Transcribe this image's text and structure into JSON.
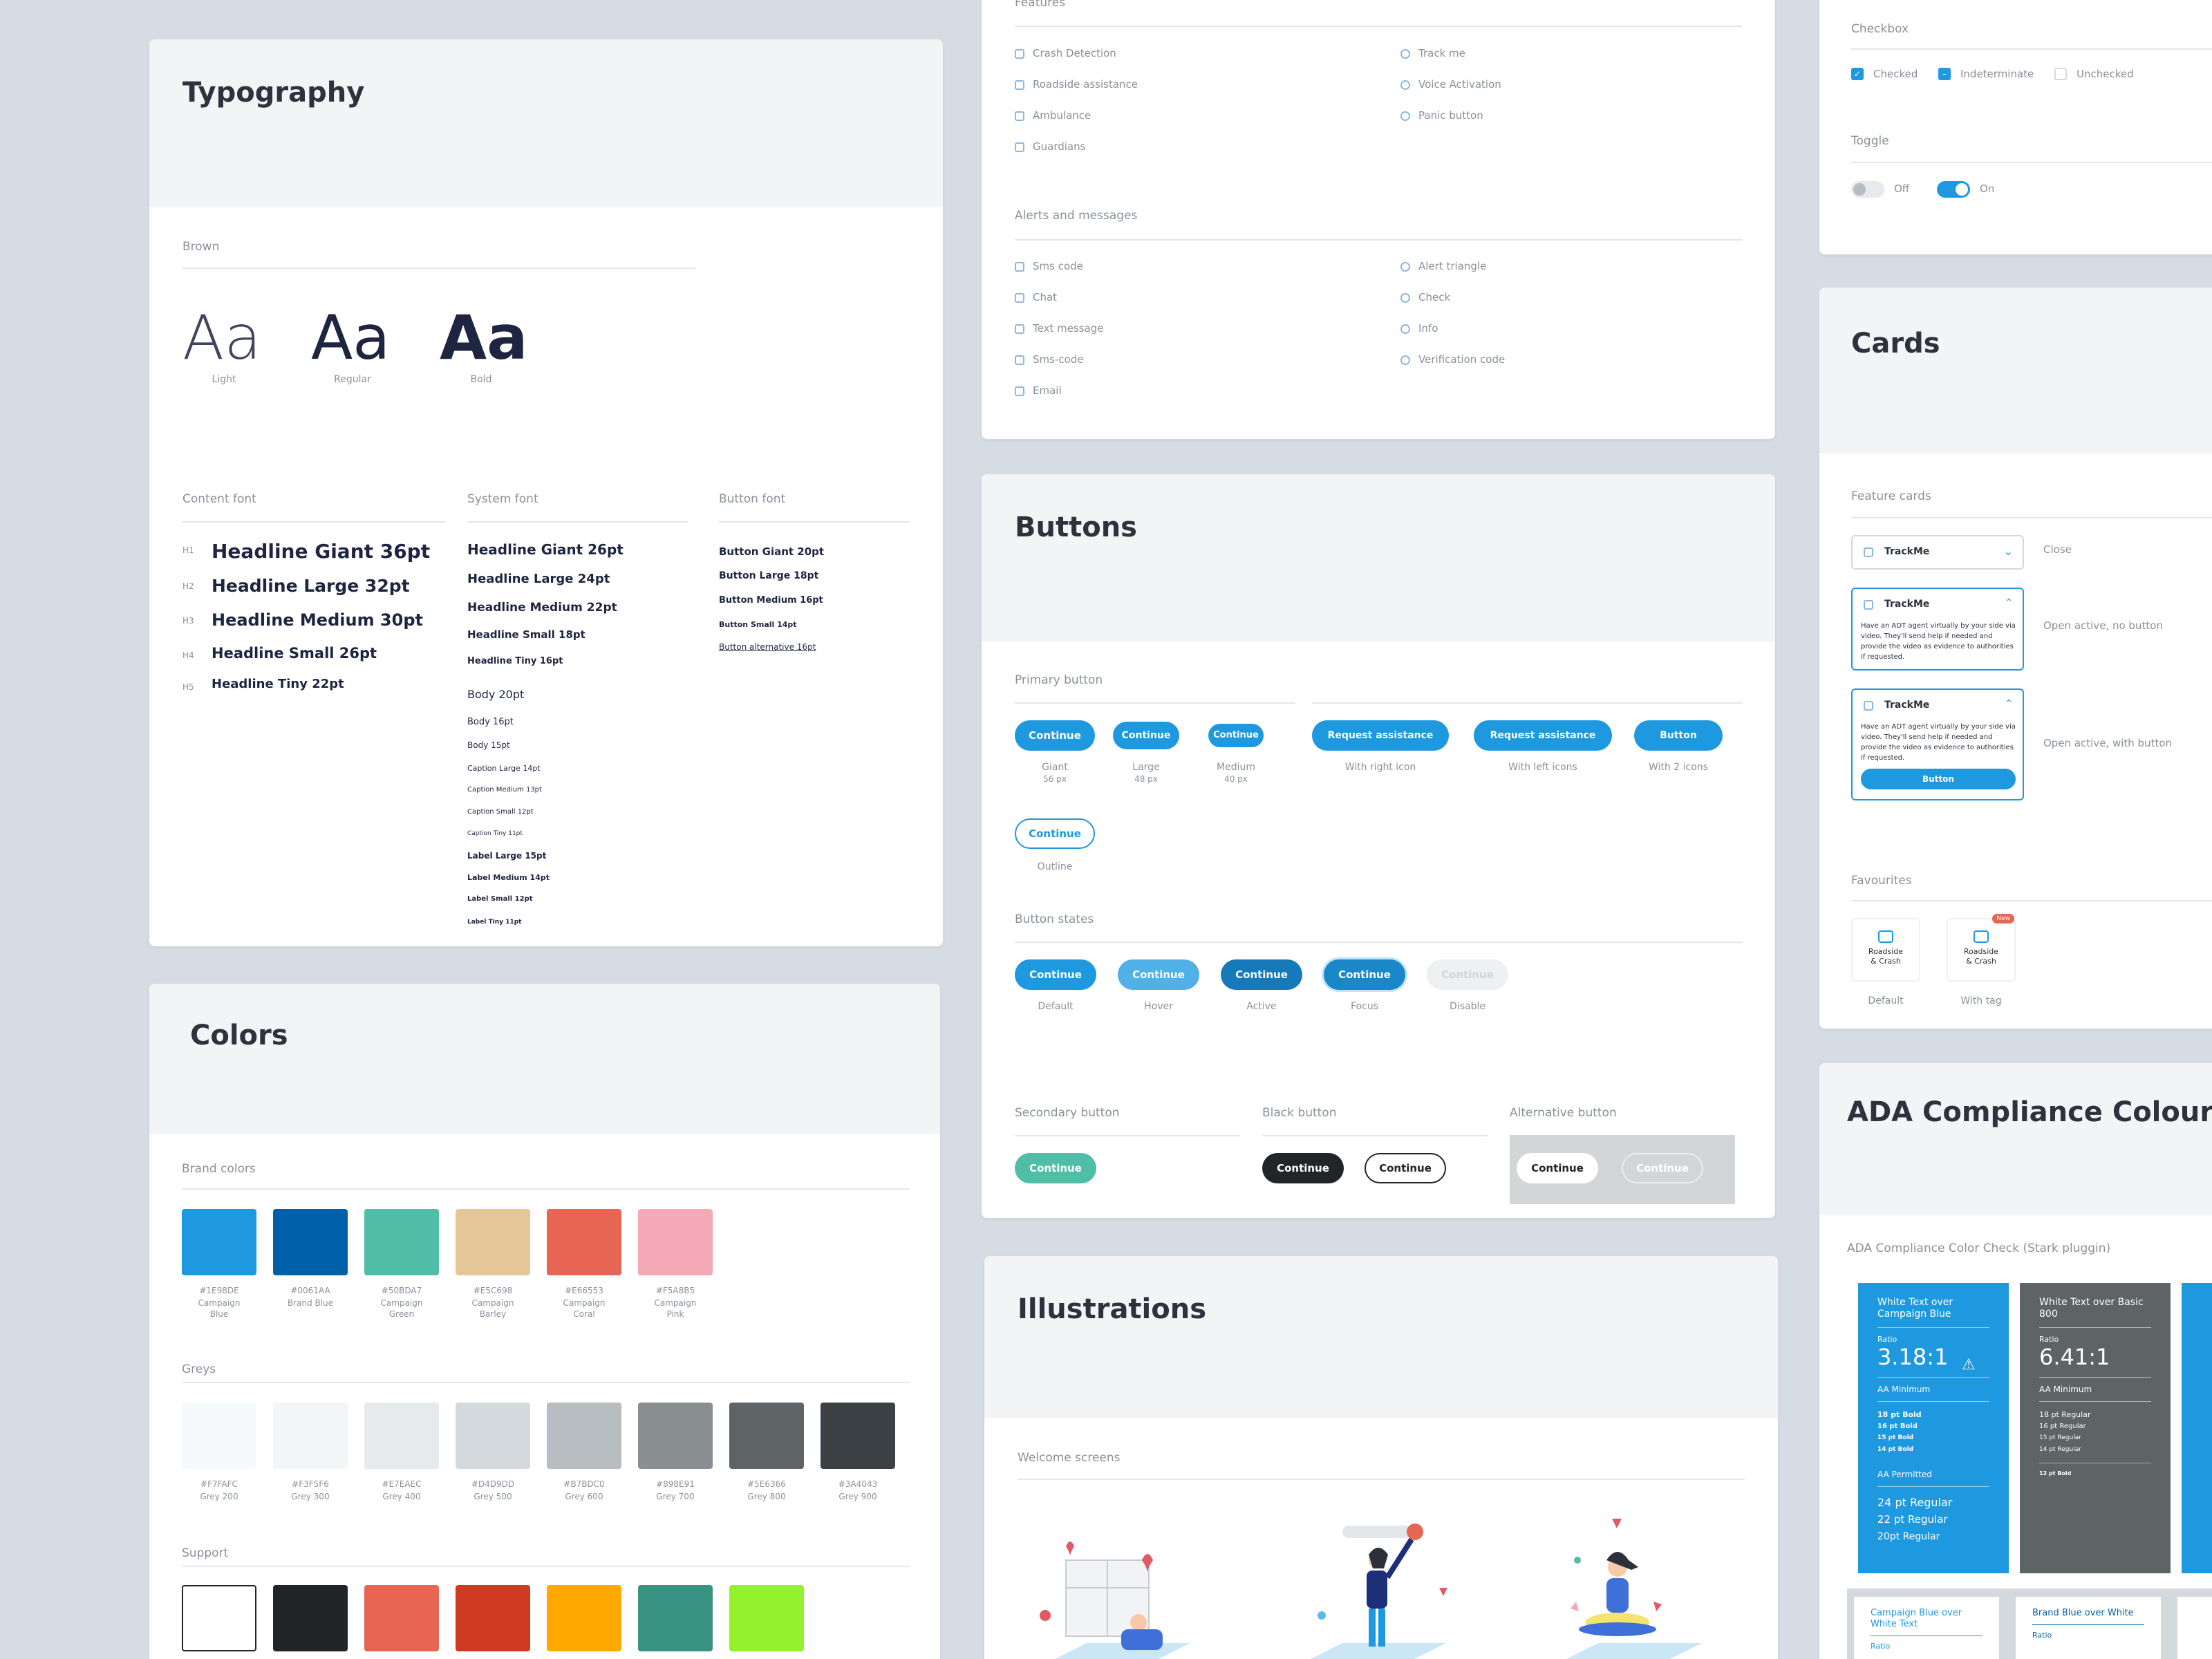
{
  "typography": {
    "title": "Typography",
    "font_section": "Brown",
    "weights": [
      {
        "sample": "Aa",
        "label": "Light"
      },
      {
        "sample": "Aa",
        "label": "Regular"
      },
      {
        "sample": "Aa",
        "label": "Bold"
      }
    ],
    "content_label": "Content font",
    "system_label": "System font",
    "button_label": "Button font",
    "content_font": [
      {
        "tag": "H1",
        "text": "Headline Giant 36pt"
      },
      {
        "tag": "H2",
        "text": "Headline Large 32pt"
      },
      {
        "tag": "H3",
        "text": "Headline Medium 30pt"
      },
      {
        "tag": "H4",
        "text": "Headline Small 26pt"
      },
      {
        "tag": "H5",
        "text": "Headline Tiny 22pt"
      }
    ],
    "system_font": [
      "Headline Giant 26pt",
      "Headline Large 24pt",
      "Headline Medium 22pt",
      "Headline Small 18pt",
      "Headline Tiny 16pt",
      "Body 20pt",
      "Body 16pt",
      "Body 15pt",
      "Caption Large 14pt",
      "Caption Medium 13pt",
      "Caption Small 12pt",
      "Caption Tiny 11pt",
      "Label Large 15pt",
      "Label Medium 14pt",
      "Label Small 12pt",
      "Label Tiny 11pt"
    ],
    "button_font": [
      "Button Giant 20pt",
      "Button Large 18pt",
      "Button Medium 16pt",
      "Button Small 14pt",
      "Button alternative 16pt"
    ]
  },
  "colors": {
    "title": "Colors",
    "brand_label": "Brand colors",
    "brand": [
      {
        "hex": "#1E98DE",
        "name": "Campaign Blue",
        "color": "#1E98DE"
      },
      {
        "hex": "#0061AA",
        "name": "Brand Blue",
        "color": "#0061AA"
      },
      {
        "hex": "#50BDA7",
        "name": "Campaign Green",
        "color": "#50BDA7"
      },
      {
        "hex": "#E5C698",
        "name": "Campaign Barley",
        "color": "#E5C698"
      },
      {
        "hex": "#E66553",
        "name": "Campaign Coral",
        "color": "#E66553"
      },
      {
        "hex": "#F5A8B5",
        "name": "Campaign Pink",
        "color": "#F5A8B5"
      }
    ],
    "greys_label": "Greys",
    "greys": [
      {
        "hex": "#F7FAFC",
        "name": "Grey 200",
        "color": "#F7FAFC"
      },
      {
        "hex": "#F3F5F6",
        "name": "Grey 300",
        "color": "#F3F5F6"
      },
      {
        "hex": "#E7EAEC",
        "name": "Grey 400",
        "color": "#E7EAEC"
      },
      {
        "hex": "#D4D9DD",
        "name": "Grey 500",
        "color": "#D4D9DD"
      },
      {
        "hex": "#B7BDC0",
        "name": "Grey 600",
        "color": "#B7BDC0"
      },
      {
        "hex": "#898E91",
        "name": "Grey 700",
        "color": "#898E91"
      },
      {
        "hex": "#5E6366",
        "name": "Grey 800",
        "color": "#5E6366"
      },
      {
        "hex": "#3A4043",
        "name": "Grey 900",
        "color": "#3A4043"
      }
    ],
    "support_label": "Support",
    "support": [
      "#FFFFFF",
      "#222428",
      "#E66553",
      "#D13A22",
      "#FFA800",
      "#3A9282",
      "#93F22B"
    ]
  },
  "icons": {
    "features_label": "Features",
    "features_left": [
      "Crash Detection",
      "Roadside assistance",
      "Ambulance",
      "Guardians"
    ],
    "features_right": [
      "Track me",
      "Voice Activation",
      "Panic button"
    ],
    "alerts_label": "Alerts and messages",
    "alerts_left": [
      "Sms code",
      "Chat",
      "Text message",
      "Sms-code",
      "Email"
    ],
    "alerts_right": [
      "Alert triangle",
      "Check",
      "Info",
      "Verification code"
    ]
  },
  "buttons": {
    "title": "Buttons",
    "primary_label": "Primary button",
    "sizes": [
      {
        "label": "Continue",
        "name": "Giant",
        "px": "56 px"
      },
      {
        "label": "Continue",
        "name": "Large",
        "px": "48 px"
      },
      {
        "label": "Continue",
        "name": "Medium",
        "px": "40 px"
      }
    ],
    "icon_buttons": [
      {
        "label": "Request assistance",
        "caption": "With right icon"
      },
      {
        "label": "Request assistance",
        "caption": "With left icons"
      },
      {
        "label": "Button",
        "caption": "With 2 icons"
      }
    ],
    "outline": {
      "label": "Continue",
      "caption": "Outline"
    },
    "states_label": "Button states",
    "states": [
      {
        "label": "Continue",
        "caption": "Default",
        "color": "#1E98DE"
      },
      {
        "label": "Continue",
        "caption": "Hover",
        "color": "#4FB1E8"
      },
      {
        "label": "Continue",
        "caption": "Active",
        "color": "#1579BA"
      },
      {
        "label": "Continue",
        "caption": "Focus",
        "color": "#1A87C8"
      },
      {
        "label": "Continue",
        "caption": "Disable",
        "color": "#EEF0F2"
      }
    ],
    "secondary_label": "Secondary button",
    "secondary": "Continue",
    "black_label": "Black button",
    "black": [
      "Continue",
      "Continue"
    ],
    "alt_label": "Alternative button",
    "alt": [
      "Continue",
      "Continue"
    ]
  },
  "illustrations": {
    "title": "Illustrations",
    "welcome_label": "Welcome screens"
  },
  "controls": {
    "checkbox_label": "Checkbox",
    "checkboxes": [
      "Checked",
      "Indeterminate",
      "Unchecked"
    ],
    "toggle_label": "Toggle",
    "toggles": [
      "Off",
      "On"
    ]
  },
  "cards": {
    "title": "Cards",
    "feature_label": "Feature cards",
    "card_name": "TrackMe",
    "states": [
      "Close",
      "Open active, no button",
      "Open active, with button"
    ],
    "body": "Have an ADT agent virtually by your side via video. They'll send help if needed and provide the video as evidence to authorities if requested.",
    "button": "Button",
    "favourites_label": "Favourites",
    "fav_text": "Roadside & Crash",
    "fav_captions": [
      "Default",
      "With tag"
    ],
    "tag": "New"
  },
  "ada": {
    "title": "ADA Compliance Colour Check",
    "subtitle": "ADA Compliance Color Check (Stark pluggin)",
    "panels": [
      {
        "head": "White Text over Campaign Blue",
        "ratio_label": "Ratio",
        "ratio": "3.18:1",
        "min": "AA Minimum",
        "min_items": [
          "18 pt Bold",
          "16 pt Bold",
          "15 pt Bold",
          "14 pt Bold"
        ],
        "perm": "AA Permitted",
        "perm_items": [
          "24 pt Regular",
          "22 pt Regular",
          "20pt Regular"
        ],
        "color": "#1E98DE"
      },
      {
        "head": "White Text over Basic 800",
        "ratio_label": "Ratio",
        "ratio": "6.41:1",
        "min": "AA Minimum",
        "min_items": [
          "18 pt Regular",
          "16 pt Regular",
          "15 pt Regular",
          "14 pt Regular"
        ],
        "extra": "12 pt Bold",
        "color": "#5E6366"
      }
    ],
    "bottom": [
      "Campaign Blue over White Text",
      "Brand Blue over White"
    ],
    "bottom_ratio": "Ratio"
  }
}
